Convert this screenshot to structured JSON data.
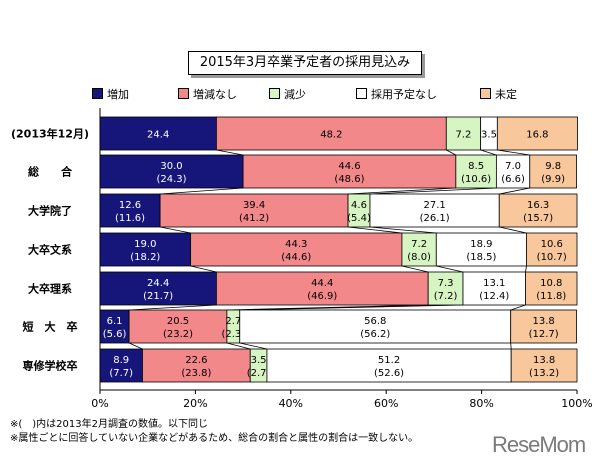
{
  "chart_data": {
    "type": "bar",
    "orientation": "horizontal",
    "stacked": true,
    "title": "2015年3月卒業予定者の採用見込み",
    "categories": [
      "(2013年12月)",
      "総　　合",
      "大学院了",
      "大卒文系",
      "大卒理系",
      "短　大　卒",
      "専修学校卒"
    ],
    "series": [
      {
        "name": "増加",
        "color": "#16167a",
        "values": [
          24.4,
          30.0,
          12.6,
          19.0,
          24.4,
          6.1,
          8.9
        ],
        "labels": [
          "24.4",
          "30.0",
          "12.6",
          "19.0",
          "24.4",
          "6.1",
          "8.9"
        ],
        "prev_labels": [
          "",
          "(24.3)",
          "(11.6)",
          "(18.2)",
          "(21.7)",
          "(5.6)",
          "(7.7)"
        ]
      },
      {
        "name": "増減なし",
        "color": "#f2888a",
        "values": [
          48.2,
          44.6,
          39.4,
          44.3,
          44.4,
          20.5,
          22.6
        ],
        "labels": [
          "48.2",
          "44.6",
          "39.4",
          "44.3",
          "44.4",
          "20.5",
          "22.6"
        ],
        "prev_labels": [
          "",
          "(48.6)",
          "(41.2)",
          "(44.6)",
          "(46.9)",
          "(23.2)",
          "(23.8)"
        ]
      },
      {
        "name": "減少",
        "color": "#d6f5c2",
        "values": [
          7.2,
          8.5,
          4.6,
          7.2,
          7.3,
          2.7,
          3.5
        ],
        "labels": [
          "7.2",
          "8.5",
          "4.6",
          "7.2",
          "7.3",
          "2.7",
          "3.5"
        ],
        "prev_labels": [
          "",
          "(10.6)",
          "(5.4)",
          "(8.0)",
          "(7.2)",
          "(2.3)",
          "(2.7)"
        ]
      },
      {
        "name": "採用予定なし",
        "color": "#ffffff",
        "values": [
          3.5,
          7.0,
          27.1,
          18.9,
          13.1,
          56.8,
          51.2
        ],
        "labels": [
          "3.5",
          "7.0",
          "27.1",
          "18.9",
          "13.1",
          "56.8",
          "51.2"
        ],
        "prev_labels": [
          "",
          "(6.6)",
          "(26.1)",
          "(18.5)",
          "(12.4)",
          "(56.2)",
          "(52.6)"
        ]
      },
      {
        "name": "未定",
        "color": "#f9c79c",
        "values": [
          16.8,
          9.8,
          16.3,
          10.6,
          10.8,
          13.8,
          13.8
        ],
        "labels": [
          "16.8",
          "9.8",
          "16.3",
          "10.6",
          "10.8",
          "13.8",
          "13.8"
        ],
        "prev_labels": [
          "",
          "(9.9)",
          "(15.7)",
          "(10.7)",
          "(11.8)",
          "(12.7)",
          "(13.2)"
        ]
      }
    ],
    "xlim": [
      0,
      100
    ],
    "xticks": [
      "0%",
      "20%",
      "40%",
      "60%",
      "80%",
      "100%"
    ],
    "legend_position": "top",
    "grid": false,
    "notes": [
      "※(　)内は2013年2月調査の数値。以下同じ",
      "※属性ごとに回答していない企業などがあるため、総合の割合と属性の割合は一致しない。"
    ]
  },
  "watermark": "ReseMom"
}
